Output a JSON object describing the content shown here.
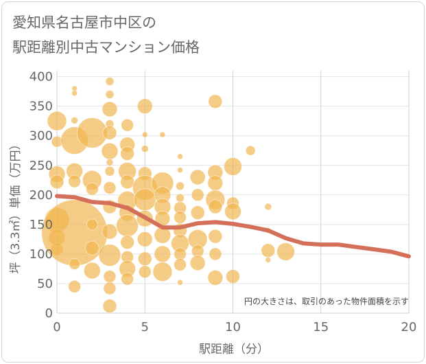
{
  "chart_data": {
    "type": "scatter",
    "title_lines": [
      "愛知県名古屋市中区の",
      "駅距離別中古マンション価格"
    ],
    "xlabel": "駅距離（分）",
    "ylabel": "坪（3.3㎡）単価（万円）",
    "note": "円の大きさは、取引のあった物件面積を示す",
    "xlim": [
      0,
      20
    ],
    "ylim": [
      0,
      410
    ],
    "xticks": [
      "0",
      "5",
      "10",
      "15",
      "20"
    ],
    "yticks": [
      "0",
      "50",
      "100",
      "150",
      "200",
      "250",
      "300",
      "350",
      "400"
    ],
    "bubble_color": "#f0b44c",
    "line_color": "#d4705a",
    "grid": true,
    "trend_line": {
      "x": [
        0,
        1,
        2,
        3,
        4,
        5,
        6,
        7,
        8,
        9,
        10,
        11,
        12,
        13,
        14,
        15,
        16,
        17,
        18,
        19,
        20
      ],
      "y": [
        198,
        196,
        188,
        186,
        178,
        162,
        145,
        145,
        152,
        154,
        151,
        146,
        140,
        127,
        118,
        116,
        116,
        112,
        108,
        104,
        96
      ]
    },
    "points": [
      {
        "x": 0,
        "y": 325,
        "s": 14
      },
      {
        "x": 0,
        "y": 290,
        "s": 8
      },
      {
        "x": 0,
        "y": 235,
        "s": 12
      },
      {
        "x": 0,
        "y": 222,
        "s": 10
      },
      {
        "x": 0,
        "y": 158,
        "s": 18
      },
      {
        "x": 0,
        "y": 128,
        "s": 12
      },
      {
        "x": 0,
        "y": 108,
        "s": 9
      },
      {
        "x": 1,
        "y": 380,
        "s": 4
      },
      {
        "x": 1,
        "y": 372,
        "s": 4
      },
      {
        "x": 1,
        "y": 326,
        "s": 5
      },
      {
        "x": 1,
        "y": 292,
        "s": 20
      },
      {
        "x": 1,
        "y": 240,
        "s": 12
      },
      {
        "x": 1,
        "y": 223,
        "s": 9
      },
      {
        "x": 1,
        "y": 136,
        "s": 48
      },
      {
        "x": 1,
        "y": 83,
        "s": 8
      },
      {
        "x": 1,
        "y": 45,
        "s": 9
      },
      {
        "x": 2,
        "y": 305,
        "s": 22
      },
      {
        "x": 2,
        "y": 225,
        "s": 14
      },
      {
        "x": 2,
        "y": 210,
        "s": 9
      },
      {
        "x": 2,
        "y": 150,
        "s": 8
      },
      {
        "x": 2,
        "y": 110,
        "s": 10
      },
      {
        "x": 2,
        "y": 72,
        "s": 12
      },
      {
        "x": 3,
        "y": 392,
        "s": 6
      },
      {
        "x": 3,
        "y": 370,
        "s": 6
      },
      {
        "x": 3,
        "y": 345,
        "s": 11
      },
      {
        "x": 3,
        "y": 320,
        "s": 6
      },
      {
        "x": 3,
        "y": 305,
        "s": 10
      },
      {
        "x": 3,
        "y": 274,
        "s": 12
      },
      {
        "x": 3,
        "y": 255,
        "s": 5
      },
      {
        "x": 3,
        "y": 240,
        "s": 7
      },
      {
        "x": 3,
        "y": 212,
        "s": 9
      },
      {
        "x": 3,
        "y": 180,
        "s": 10
      },
      {
        "x": 3,
        "y": 138,
        "s": 11
      },
      {
        "x": 3,
        "y": 98,
        "s": 16
      },
      {
        "x": 3,
        "y": 62,
        "s": 9
      },
      {
        "x": 3,
        "y": 42,
        "s": 9
      },
      {
        "x": 3,
        "y": 12,
        "s": 10
      },
      {
        "x": 4,
        "y": 318,
        "s": 9
      },
      {
        "x": 4,
        "y": 285,
        "s": 11
      },
      {
        "x": 4,
        "y": 270,
        "s": 10
      },
      {
        "x": 4,
        "y": 240,
        "s": 13
      },
      {
        "x": 4,
        "y": 222,
        "s": 10
      },
      {
        "x": 4,
        "y": 190,
        "s": 14
      },
      {
        "x": 4,
        "y": 170,
        "s": 12
      },
      {
        "x": 4,
        "y": 148,
        "s": 16
      },
      {
        "x": 4,
        "y": 120,
        "s": 10
      },
      {
        "x": 4,
        "y": 95,
        "s": 9
      },
      {
        "x": 4,
        "y": 75,
        "s": 12
      },
      {
        "x": 4,
        "y": 58,
        "s": 9
      },
      {
        "x": 5,
        "y": 350,
        "s": 11
      },
      {
        "x": 5,
        "y": 302,
        "s": 4
      },
      {
        "x": 5,
        "y": 278,
        "s": 5
      },
      {
        "x": 5,
        "y": 236,
        "s": 10
      },
      {
        "x": 5,
        "y": 212,
        "s": 18
      },
      {
        "x": 5,
        "y": 192,
        "s": 16
      },
      {
        "x": 5,
        "y": 160,
        "s": 12
      },
      {
        "x": 5,
        "y": 125,
        "s": 11
      },
      {
        "x": 5,
        "y": 92,
        "s": 10
      },
      {
        "x": 5,
        "y": 70,
        "s": 9
      },
      {
        "x": 6,
        "y": 302,
        "s": 4
      },
      {
        "x": 6,
        "y": 220,
        "s": 16
      },
      {
        "x": 6,
        "y": 200,
        "s": 12
      },
      {
        "x": 6,
        "y": 180,
        "s": 12
      },
      {
        "x": 6,
        "y": 160,
        "s": 11
      },
      {
        "x": 6,
        "y": 132,
        "s": 12
      },
      {
        "x": 6,
        "y": 100,
        "s": 12
      },
      {
        "x": 6,
        "y": 70,
        "s": 14
      },
      {
        "x": 7,
        "y": 265,
        "s": 4
      },
      {
        "x": 7,
        "y": 242,
        "s": 4
      },
      {
        "x": 7,
        "y": 215,
        "s": 6
      },
      {
        "x": 7,
        "y": 195,
        "s": 6
      },
      {
        "x": 7,
        "y": 178,
        "s": 9
      },
      {
        "x": 7,
        "y": 162,
        "s": 9
      },
      {
        "x": 7,
        "y": 140,
        "s": 10
      },
      {
        "x": 7,
        "y": 118,
        "s": 13
      },
      {
        "x": 7,
        "y": 100,
        "s": 9
      },
      {
        "x": 7,
        "y": 82,
        "s": 9
      },
      {
        "x": 7,
        "y": 52,
        "s": 4
      },
      {
        "x": 8,
        "y": 230,
        "s": 11
      },
      {
        "x": 8,
        "y": 200,
        "s": 9
      },
      {
        "x": 8,
        "y": 170,
        "s": 10
      },
      {
        "x": 8,
        "y": 125,
        "s": 14
      },
      {
        "x": 8,
        "y": 105,
        "s": 9
      },
      {
        "x": 8,
        "y": 85,
        "s": 11
      },
      {
        "x": 9,
        "y": 358,
        "s": 10
      },
      {
        "x": 9,
        "y": 238,
        "s": 11
      },
      {
        "x": 9,
        "y": 220,
        "s": 11
      },
      {
        "x": 9,
        "y": 192,
        "s": 14
      },
      {
        "x": 9,
        "y": 180,
        "s": 10
      },
      {
        "x": 9,
        "y": 130,
        "s": 10
      },
      {
        "x": 9,
        "y": 100,
        "s": 9
      },
      {
        "x": 9,
        "y": 60,
        "s": 11
      },
      {
        "x": 10,
        "y": 248,
        "s": 13
      },
      {
        "x": 10,
        "y": 186,
        "s": 9
      },
      {
        "x": 10,
        "y": 172,
        "s": 12
      },
      {
        "x": 10,
        "y": 62,
        "s": 10
      },
      {
        "x": 11,
        "y": 275,
        "s": 7
      },
      {
        "x": 12,
        "y": 180,
        "s": 5
      },
      {
        "x": 12,
        "y": 140,
        "s": 4
      },
      {
        "x": 12,
        "y": 106,
        "s": 10
      },
      {
        "x": 12,
        "y": 90,
        "s": 4
      },
      {
        "x": 13,
        "y": 104,
        "s": 13
      }
    ]
  }
}
